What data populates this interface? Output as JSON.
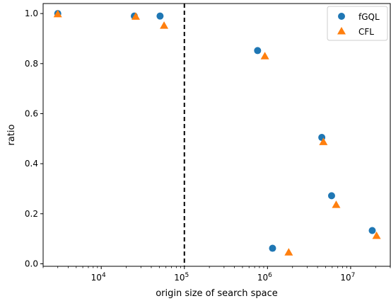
{
  "chart_data": {
    "type": "scatter",
    "title": "",
    "xlabel": "origin size of search space",
    "ylabel": "ratio",
    "xscale": "log",
    "xlim": [
      2000,
      30000000
    ],
    "ylim": [
      -0.01,
      1.04
    ],
    "grid": false,
    "legend_placement": "top-right",
    "x_tick_labels": [
      {
        "value": 10000,
        "base": "10",
        "exp": "4"
      },
      {
        "value": 100000,
        "base": "10",
        "exp": "5"
      },
      {
        "value": 1000000,
        "base": "10",
        "exp": "6"
      },
      {
        "value": 10000000,
        "base": "10",
        "exp": "7"
      }
    ],
    "y_ticks": [
      0.0,
      0.2,
      0.4,
      0.6,
      0.8,
      1.0
    ],
    "y_tick_labels": [
      "0.0",
      "0.2",
      "0.4",
      "0.6",
      "0.8",
      "1.0"
    ],
    "reference_line": {
      "x": 100000,
      "style": "dashed",
      "color": "#000000"
    },
    "series": [
      {
        "name": "fGQL",
        "marker": "circle",
        "color": "#1f77b4",
        "points": [
          {
            "x": 3000,
            "y": 1.0
          },
          {
            "x": 25000,
            "y": 0.99
          },
          {
            "x": 51000,
            "y": 0.99
          },
          {
            "x": 760000,
            "y": 0.852
          },
          {
            "x": 1150000,
            "y": 0.062
          },
          {
            "x": 4500000,
            "y": 0.505
          },
          {
            "x": 5900000,
            "y": 0.272
          },
          {
            "x": 18200000,
            "y": 0.133
          }
        ]
      },
      {
        "name": "CFL",
        "marker": "triangle",
        "color": "#ff7f0e",
        "points": [
          {
            "x": 3000,
            "y": 0.998
          },
          {
            "x": 26000,
            "y": 0.988
          },
          {
            "x": 57000,
            "y": 0.952
          },
          {
            "x": 930000,
            "y": 0.83
          },
          {
            "x": 1800000,
            "y": 0.046
          },
          {
            "x": 4700000,
            "y": 0.487
          },
          {
            "x": 6700000,
            "y": 0.236
          },
          {
            "x": 20500000,
            "y": 0.112
          }
        ]
      }
    ]
  }
}
